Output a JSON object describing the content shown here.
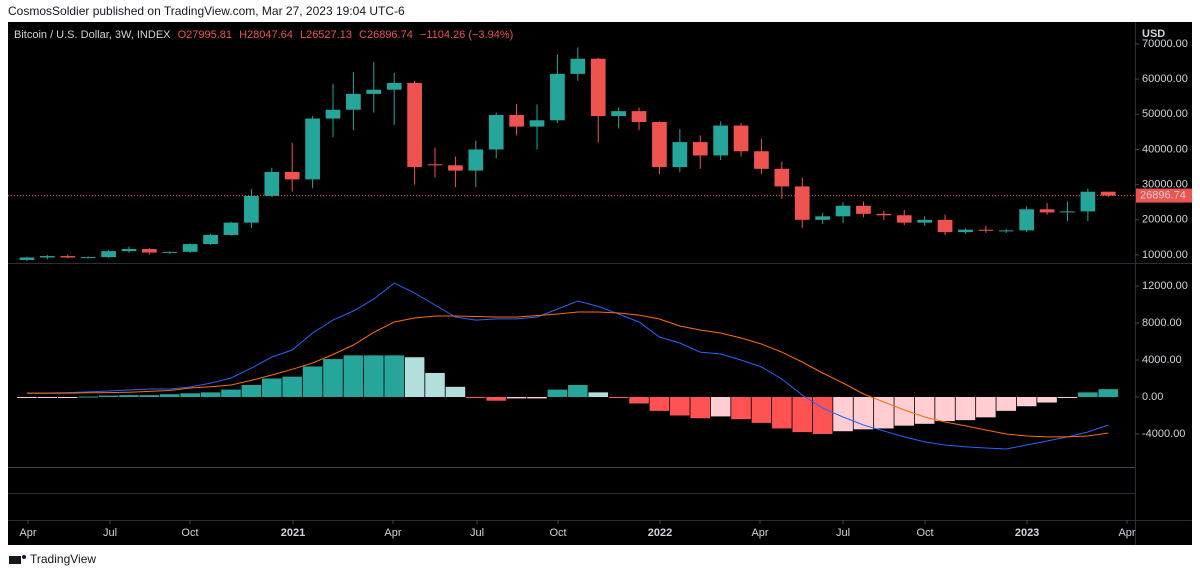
{
  "header": {
    "published": "CosmosSoldier published on TradingView.com, Mar 27, 2023 19:04 UTC-6"
  },
  "footer": {
    "brand": "TradingView"
  },
  "chart_data": [
    {
      "type": "candlestick",
      "title": "Bitcoin / U.S. Dollar, 3W, INDEX",
      "legend": [
        "O27995.81",
        "H28047.64",
        "L26527.13",
        "C26896.74",
        "−1104.26 (−3.94%)"
      ],
      "unit": "USD",
      "open": [
        8600,
        9300,
        9700,
        9300,
        9400,
        11100,
        11700,
        10700,
        10900,
        13100,
        15700,
        19200,
        26800,
        33600,
        31500,
        48800,
        51300,
        55800,
        57000,
        58900,
        35800,
        35500,
        34000,
        40000,
        49800,
        46500,
        48300,
        61500,
        65800,
        49500,
        50900,
        47800,
        35000,
        42100,
        38300,
        46800,
        39500,
        34500,
        29500,
        20000,
        21000,
        24000,
        21700,
        21300,
        19200,
        20000,
        16500,
        17200,
        16900,
        17000,
        23000,
        22100,
        22400,
        27995.81
      ],
      "high": [
        9500,
        10000,
        10100,
        9600,
        11400,
        12400,
        12000,
        11000,
        13300,
        16000,
        19500,
        28800,
        34800,
        41900,
        49500,
        58600,
        62000,
        64900,
        61800,
        59500,
        40500,
        38000,
        42500,
        50500,
        52900,
        52800,
        67000,
        69000,
        66000,
        52000,
        51900,
        48000,
        45800,
        44000,
        48000,
        47500,
        43000,
        36500,
        32000,
        22000,
        25000,
        25200,
        22500,
        22800,
        21000,
        21500,
        17500,
        18300,
        17400,
        23900,
        24800,
        25200,
        28900,
        28047.64
      ],
      "low": [
        8300,
        8800,
        9100,
        9000,
        9200,
        10700,
        10100,
        10300,
        10600,
        12900,
        15500,
        17700,
        26500,
        28000,
        29000,
        43500,
        45500,
        50500,
        47000,
        30000,
        32000,
        29300,
        29300,
        37500,
        44000,
        40000,
        47500,
        59500,
        42000,
        46000,
        45500,
        33000,
        33500,
        34500,
        37000,
        38000,
        33000,
        26000,
        17700,
        18800,
        19000,
        20700,
        20000,
        18500,
        18300,
        15700,
        16000,
        16300,
        16300,
        16500,
        21500,
        19600,
        19600,
        26527.13
      ],
      "close": [
        9300,
        9700,
        9300,
        9400,
        11100,
        11700,
        10700,
        10900,
        13100,
        15700,
        19200,
        26800,
        33600,
        31500,
        48800,
        51300,
        55800,
        57000,
        58900,
        35000,
        35500,
        34000,
        40000,
        49800,
        46500,
        48300,
        61500,
        65800,
        49500,
        50900,
        47800,
        35000,
        42100,
        38300,
        46800,
        39500,
        34500,
        29500,
        20000,
        21000,
        24000,
        21700,
        21300,
        19200,
        20000,
        16500,
        17200,
        16900,
        17000,
        23000,
        22100,
        22400,
        27996,
        26896.74
      ],
      "up_color": "#26a69a",
      "down_color": "#ef5350",
      "last_price_label": "26896.74",
      "xlim": [
        -0.93,
        54.31
      ],
      "xticks": [
        {
          "value": 0.05,
          "label": "Apr"
        },
        {
          "value": 4.07,
          "label": "Jul"
        },
        {
          "value": 7.99,
          "label": "Oct"
        },
        {
          "value": 13.04,
          "label": "2021"
        },
        {
          "value": 17.94,
          "label": "Apr"
        },
        {
          "value": 22.06,
          "label": "Jul"
        },
        {
          "value": 26.03,
          "label": "Oct"
        },
        {
          "value": 31.03,
          "label": "2022"
        },
        {
          "value": 35.93,
          "label": "Apr"
        },
        {
          "value": 40.0,
          "label": "Jul"
        },
        {
          "value": 44.02,
          "label": "Oct"
        },
        {
          "value": 49.02,
          "label": "2023"
        },
        {
          "value": 53.92,
          "label": "Apr"
        }
      ],
      "ylim": [
        7730,
        76240
      ],
      "yticks": [
        {
          "value": 10000,
          "label": "10000.00"
        },
        {
          "value": 20000,
          "label": "20000.00"
        },
        {
          "value": 30000,
          "label": "30000.00"
        },
        {
          "value": 40000,
          "label": "40000.00"
        },
        {
          "value": 50000,
          "label": "50000.00"
        },
        {
          "value": 60000,
          "label": "60000.00"
        },
        {
          "value": 70000,
          "label": "70000.00"
        }
      ]
    },
    {
      "type": "macd",
      "histogram": {
        "values": [
          -100,
          -100,
          -50,
          50,
          150,
          200,
          200,
          300,
          400,
          500,
          800,
          1300,
          2000,
          2200,
          3300,
          4100,
          4500,
          4500,
          4500,
          4300,
          2600,
          1100,
          -100,
          -400,
          -150,
          -150,
          800,
          1300,
          500,
          -50,
          -700,
          -1500,
          -2000,
          -2300,
          -2100,
          -2400,
          -2800,
          -3400,
          -3800,
          -4000,
          -3700,
          -3500,
          -3400,
          -3100,
          -2900,
          -2600,
          -2500,
          -2200,
          -1500,
          -1000,
          -600,
          -100,
          500,
          850
        ],
        "colors": {
          "up_rising": "#26a69a",
          "up_falling": "#b2dfdb",
          "down_falling": "#ff5252",
          "down_rising": "#ffcdd2"
        }
      },
      "macd": {
        "color": "#2962ff",
        "values": [
          430,
          430,
          480,
          550,
          650,
          760,
          860,
          860,
          1080,
          1500,
          2050,
          3130,
          4320,
          5080,
          6920,
          8320,
          9300,
          10590,
          12320,
          11240,
          9950,
          8650,
          8320,
          8450,
          8450,
          8650,
          9510,
          10380,
          9800,
          8970,
          8110,
          6490,
          5840,
          4860,
          4650,
          4000,
          3240,
          1950,
          220,
          -1190,
          -2160,
          -3030,
          -3680,
          -4320,
          -4860,
          -5190,
          -5400,
          -5510,
          -5620,
          -5190,
          -4760,
          -4320,
          -3780,
          -3030
        ]
      },
      "signal": {
        "color": "#ff6d00",
        "values": [
          400,
          400,
          420,
          450,
          480,
          520,
          600,
          700,
          970,
          1100,
          1300,
          1800,
          2380,
          3000,
          3680,
          4600,
          5620,
          7000,
          8110,
          8540,
          8760,
          8760,
          8700,
          8650,
          8650,
          8800,
          8970,
          9190,
          9190,
          9080,
          8860,
          8430,
          7680,
          7240,
          6920,
          6380,
          5730,
          4860,
          3780,
          2590,
          1510,
          320,
          -540,
          -1410,
          -2160,
          -2700,
          -3130,
          -3570,
          -4000,
          -4220,
          -4320,
          -4320,
          -4220,
          -3890
        ]
      },
      "ylim": [
        -7570,
        14490
      ],
      "yticks": [
        {
          "value": 12000,
          "label": "12000.00"
        },
        {
          "value": 8000,
          "label": "8000.00"
        },
        {
          "value": 4000,
          "label": "4000.00"
        },
        {
          "value": 0,
          "label": "0.00"
        },
        {
          "value": -4000,
          "label": "-4000.00"
        }
      ]
    }
  ]
}
